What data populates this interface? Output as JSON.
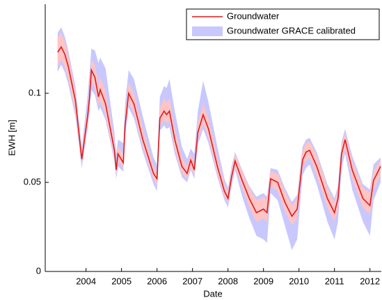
{
  "chart_data": {
    "type": "line",
    "x_label": "Date",
    "y_label": "EWH [m]",
    "x": [
      2003.2,
      2003.3,
      2003.4,
      2003.5,
      2003.7,
      2003.88,
      2004.05,
      2004.1,
      2004.15,
      2004.25,
      2004.35,
      2004.4,
      2004.55,
      2004.8,
      2004.85,
      2004.9,
      2005.05,
      2005.1,
      2005.2,
      2005.35,
      2005.6,
      2005.9,
      2006.0,
      2006.08,
      2006.2,
      2006.27,
      2006.35,
      2006.5,
      2006.7,
      2006.85,
      2006.95,
      2007.05,
      2007.15,
      2007.3,
      2007.45,
      2007.7,
      2007.9,
      2008.0,
      2008.1,
      2008.2,
      2008.4,
      2008.6,
      2008.8,
      2009.0,
      2009.1,
      2009.2,
      2009.4,
      2009.6,
      2009.8,
      2009.95,
      2010.1,
      2010.2,
      2010.3,
      2010.5,
      2010.8,
      2011.0,
      2011.1,
      2011.2,
      2011.3,
      2011.5,
      2011.8,
      2012.0,
      2012.1,
      2012.3
    ],
    "series": [
      {
        "name": "Groundwater",
        "color": "#e0191c",
        "band_color": "#ffc4c4",
        "values": [
          0.123,
          0.126,
          0.122,
          0.115,
          0.096,
          0.063,
          0.088,
          0.098,
          0.113,
          0.109,
          0.098,
          0.102,
          0.094,
          0.068,
          0.057,
          0.066,
          0.061,
          0.082,
          0.1,
          0.094,
          0.074,
          0.055,
          0.052,
          0.086,
          0.09,
          0.088,
          0.09,
          0.074,
          0.059,
          0.055,
          0.0625,
          0.057,
          0.078,
          0.088,
          0.08,
          0.059,
          0.045,
          0.041,
          0.053,
          0.062,
          0.051,
          0.041,
          0.033,
          0.035,
          0.033,
          0.052,
          0.05,
          0.039,
          0.031,
          0.035,
          0.0625,
          0.067,
          0.068,
          0.059,
          0.041,
          0.033,
          0.041,
          0.066,
          0.074,
          0.057,
          0.041,
          0.037,
          0.051,
          0.059
        ],
        "lower": [
          0.115,
          0.119,
          0.115,
          0.108,
          0.09,
          0.06,
          0.084,
          0.093,
          0.107,
          0.103,
          0.093,
          0.096,
          0.088,
          0.064,
          0.054,
          0.062,
          0.058,
          0.078,
          0.095,
          0.089,
          0.07,
          0.052,
          0.048,
          0.082,
          0.085,
          0.083,
          0.085,
          0.069,
          0.055,
          0.052,
          0.059,
          0.054,
          0.074,
          0.083,
          0.075,
          0.055,
          0.042,
          0.038,
          0.05,
          0.059,
          0.047,
          0.036,
          0.028,
          0.03,
          0.028,
          0.048,
          0.045,
          0.034,
          0.026,
          0.03,
          0.058,
          0.062,
          0.064,
          0.054,
          0.036,
          0.028,
          0.036,
          0.062,
          0.069,
          0.052,
          0.036,
          0.032,
          0.046,
          0.054
        ],
        "upper": [
          0.131,
          0.134,
          0.129,
          0.121,
          0.101,
          0.067,
          0.093,
          0.104,
          0.119,
          0.116,
          0.105,
          0.109,
          0.101,
          0.073,
          0.061,
          0.07,
          0.066,
          0.088,
          0.106,
          0.1,
          0.08,
          0.059,
          0.056,
          0.092,
          0.097,
          0.095,
          0.097,
          0.08,
          0.064,
          0.059,
          0.066,
          0.061,
          0.083,
          0.094,
          0.086,
          0.064,
          0.049,
          0.045,
          0.057,
          0.066,
          0.056,
          0.047,
          0.04,
          0.042,
          0.04,
          0.056,
          0.055,
          0.045,
          0.037,
          0.041,
          0.068,
          0.072,
          0.073,
          0.065,
          0.047,
          0.039,
          0.046,
          0.071,
          0.078,
          0.062,
          0.047,
          0.044,
          0.056,
          0.063
        ]
      },
      {
        "name": "Groundwater GRACE calibrated",
        "color": "#c8c8ff",
        "lower": [
          0.112,
          0.116,
          0.112,
          0.105,
          0.087,
          0.058,
          0.081,
          0.09,
          0.102,
          0.099,
          0.09,
          0.092,
          0.085,
          0.062,
          0.052,
          0.059,
          0.056,
          0.075,
          0.092,
          0.086,
          0.067,
          0.049,
          0.045,
          0.079,
          0.082,
          0.08,
          0.081,
          0.066,
          0.053,
          0.05,
          0.057,
          0.052,
          0.071,
          0.08,
          0.072,
          0.053,
          0.04,
          0.036,
          0.048,
          0.057,
          0.042,
          0.03,
          0.02,
          0.018,
          0.016,
          0.044,
          0.04,
          0.026,
          0.012,
          0.018,
          0.054,
          0.058,
          0.06,
          0.049,
          0.028,
          0.018,
          0.028,
          0.058,
          0.066,
          0.046,
          0.028,
          0.02,
          0.04,
          0.05
        ],
        "upper": [
          0.134,
          0.137,
          0.132,
          0.124,
          0.104,
          0.069,
          0.1,
          0.112,
          0.125,
          0.124,
          0.117,
          0.12,
          0.114,
          0.078,
          0.066,
          0.074,
          0.072,
          0.094,
          0.113,
          0.108,
          0.087,
          0.064,
          0.06,
          0.098,
          0.104,
          0.103,
          0.108,
          0.09,
          0.07,
          0.063,
          0.069,
          0.066,
          0.09,
          0.107,
          0.095,
          0.07,
          0.052,
          0.047,
          0.059,
          0.067,
          0.057,
          0.048,
          0.042,
          0.044,
          0.042,
          0.058,
          0.057,
          0.047,
          0.039,
          0.043,
          0.07,
          0.074,
          0.075,
          0.067,
          0.049,
          0.041,
          0.048,
          0.073,
          0.08,
          0.065,
          0.049,
          0.046,
          0.06,
          0.064
        ]
      }
    ],
    "xlim": [
      2002.85,
      2012.32
    ],
    "xticks": [
      2004,
      2005,
      2006,
      2007,
      2008,
      2009,
      2010,
      2011,
      2012
    ],
    "ylim": [
      0,
      0.15
    ],
    "yticks": [
      0,
      0.05,
      0.1
    ],
    "legend": "upper right"
  }
}
